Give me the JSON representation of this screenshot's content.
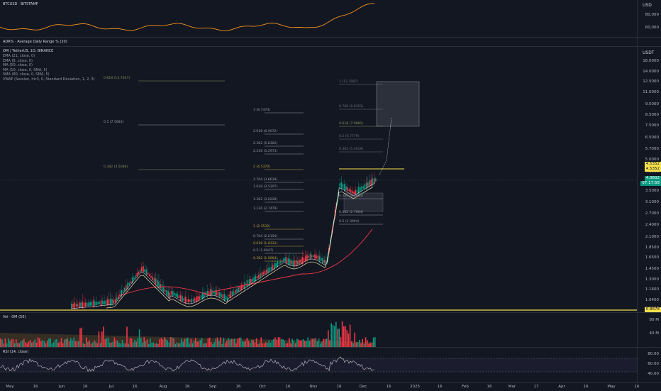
{
  "panes": {
    "compare": {
      "label": "BTCUSD · BITSTAMP",
      "currency": "USD",
      "ticks": [
        "80,000",
        "60,000"
      ]
    },
    "adr": {
      "label": "ADR% · Average Daily Range % (20)"
    },
    "main": {
      "symbol": "OM / TetherUS, 1D, BINANCE",
      "currency": "USDT",
      "indicators": [
        "EMA (21, close, 0)",
        "EMA (8, close, 0)",
        "MA (50, close, 0)",
        "MA (10, close, 0, SMA, 5)",
        "SMA (80, close, 0, SMA, 5)",
        "VWAP (Session, hlc3, 0, Standard Deviation, 1, 2, 3)"
      ],
      "ticks": [
        "16.0000",
        "14.0000",
        "12.5000",
        "11.0000",
        "9.5000",
        "8.5000",
        "7.5000",
        "6.5000",
        "5.7000",
        "5.0000",
        "4.3000",
        "3.5000",
        "3.1000",
        "2.7000",
        "2.4000",
        "2.1000",
        "1.8500",
        "1.6500",
        "1.4500",
        "1.3000",
        "1.1600",
        "1.0400",
        "0.9300"
      ],
      "badges": [
        {
          "text": "4.5352",
          "bg": "#f6e04b",
          "fg": "#131722"
        },
        {
          "text": "4.5352",
          "bg": "#f6e04b",
          "fg": "#131722"
        },
        {
          "text": "4.0602",
          "bg": "#089981",
          "fg": "#ffffff"
        },
        {
          "text": "07:17:58",
          "bg": "#089981",
          "fg": "#ffffff"
        },
        {
          "text": "0.8878",
          "bg": "#f6e04b",
          "fg": "#131722"
        }
      ],
      "fib_left": [
        {
          "text": "0.618 (12.7047)"
        },
        {
          "text": "0.5 (7.5683)"
        },
        {
          "text": "0.382 (4.5086)"
        }
      ],
      "fib_mid": [
        {
          "text": "3 (8.7474)"
        },
        {
          "text": "2.618 (6.9072)"
        },
        {
          "text": "2.382 (5.8302)"
        },
        {
          "text": "2.236 (5.2973)"
        },
        {
          "text": "2 (4.5370)"
        },
        {
          "text": "1.764 (3.8618)"
        },
        {
          "text": "1.618 (3.5307)"
        },
        {
          "text": "1.382 (3.0228)"
        },
        {
          "text": "1.236 (2.7479)"
        },
        {
          "text": "1 (2.3532)"
        },
        {
          "text": "0.764 (2.0154)"
        },
        {
          "text": "0.618 (1.8312)"
        },
        {
          "text": "0.5 (1.6947)"
        },
        {
          "text": "0.382 (1.5664)"
        }
      ],
      "fib_right": [
        {
          "text": "1 (12.1987)"
        },
        {
          "text": "0.786 (9.8353)"
        },
        {
          "text": "0.618 (7.9881)"
        },
        {
          "text": "0.5 (6.7779)"
        },
        {
          "text": "0.382 (5.4619)"
        },
        {
          "text": "0.236 (3.3831)"
        },
        {
          "text": "0.382 (2.7804)"
        },
        {
          "text": "0.5 (2.3904)"
        }
      ]
    },
    "volume": {
      "label": "Vol · OM (50)",
      "ticks": [
        "80 M",
        "40 M"
      ]
    },
    "rsi": {
      "label": "RSI (14, close)",
      "ticks": [
        "80.00",
        "60.00",
        "40.00"
      ]
    }
  },
  "time_axis": [
    "May",
    "16",
    "Jun",
    "16",
    "Jul",
    "16",
    "Aug",
    "16",
    "Sep",
    "16",
    "Oct",
    "16",
    "Nov",
    "16",
    "Dec",
    "16",
    "2025",
    "16",
    "Feb",
    "16",
    "Mar",
    "17",
    "Apr",
    "16",
    "May",
    "16"
  ],
  "colors": {
    "up": "#089981",
    "down": "#f23645",
    "accent": "#f6e04b",
    "btc": "#f7931a"
  }
}
